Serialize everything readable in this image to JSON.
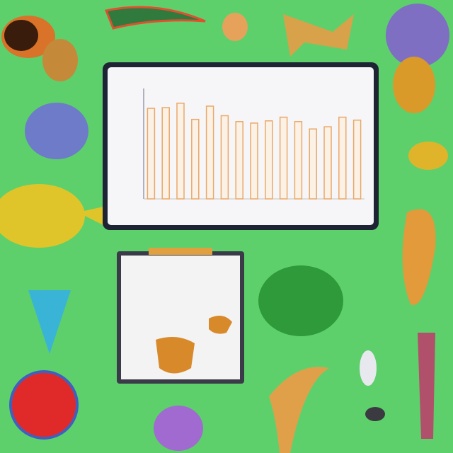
{
  "chart_data": {
    "type": "bar",
    "categories": [
      null,
      null,
      null,
      null,
      null,
      null,
      null,
      null,
      null,
      null,
      null,
      null,
      null,
      null,
      null
    ],
    "values": [
      123,
      124,
      130,
      108,
      126,
      113,
      105,
      103,
      106,
      111,
      105,
      95,
      98,
      111,
      107
    ],
    "color": "#e9a86a",
    "ylim": [
      0,
      150
    ]
  }
}
